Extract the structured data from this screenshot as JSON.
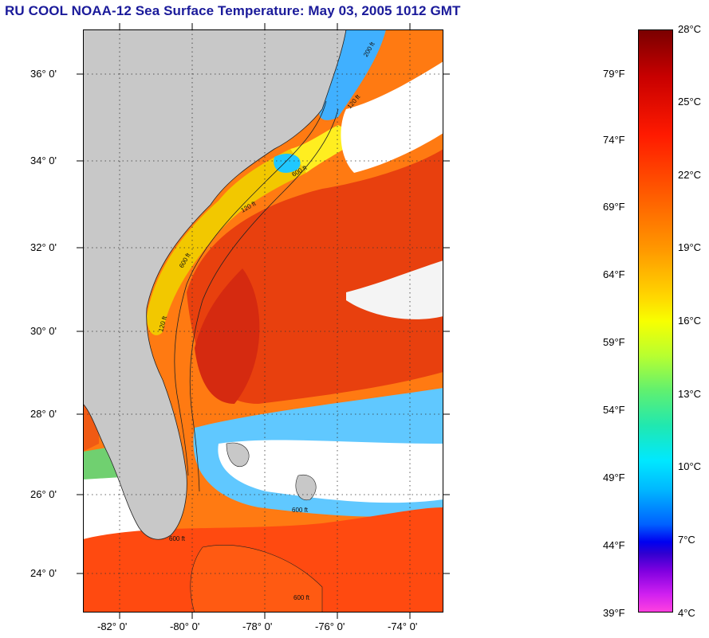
{
  "title": "RU COOL  NOAA-12  Sea Surface Temperature:  May 03, 2005 1012 GMT",
  "map": {
    "lat_labels": [
      "36° 0'",
      "34° 0'",
      "32° 0'",
      "30° 0'",
      "28° 0'",
      "26° 0'",
      "24° 0'"
    ],
    "lon_labels": [
      "-82° 0'",
      "-80° 0'",
      "-78° 0'",
      "-76° 0'",
      "-74° 0'"
    ],
    "contour_labels": [
      "200 ft",
      "120 ft",
      "600 ft",
      "120 ft",
      "600 ft",
      "120 ft",
      "600 ft",
      "600 ft",
      "600 ft"
    ],
    "colors": {
      "land": "#c8c8c8",
      "cloud": "#ffffff",
      "gulf_stream": "#e83a10",
      "shelf": "#ffd400"
    }
  },
  "colorbar": {
    "fahrenheit_ticks": [
      "79°F",
      "74°F",
      "69°F",
      "64°F",
      "59°F",
      "54°F",
      "49°F",
      "44°F",
      "39°F"
    ],
    "celsius_ticks": [
      "28°C",
      "25°C",
      "22°C",
      "19°C",
      "16°C",
      "13°C",
      "10°C",
      "7°C",
      "4°C"
    ]
  }
}
